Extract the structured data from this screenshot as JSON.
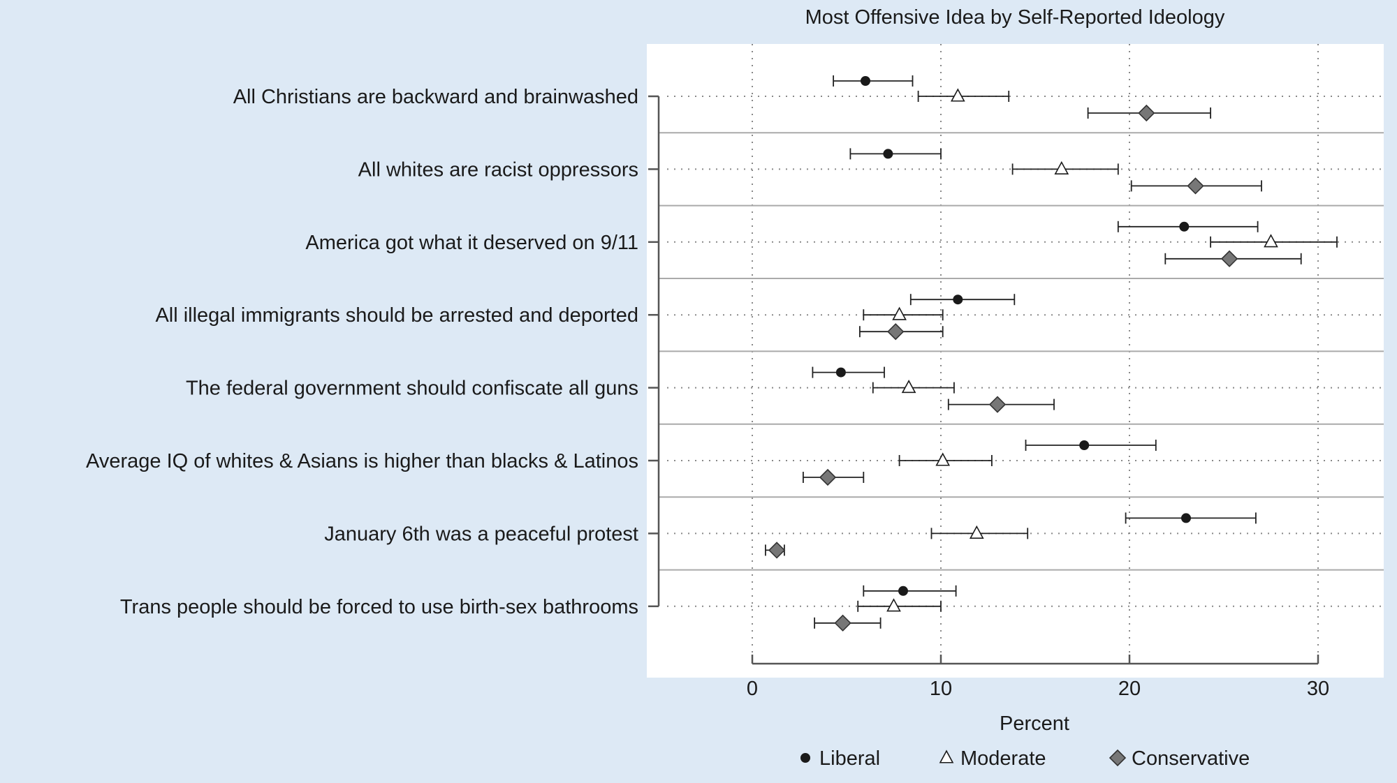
{
  "chart_data": {
    "type": "dot-errorbar",
    "title": "Most Offensive Idea by Self-Reported Ideology",
    "xlabel": "Percent",
    "ylabel": "",
    "xlim": [
      -5.6,
      33.4
    ],
    "xticks": [
      0,
      10,
      20,
      30
    ],
    "grid": true,
    "legend_position": "bottom",
    "categories": [
      "All Christians are backward and brainwashed",
      "All whites are racist oppressors",
      "America got what it deserved on 9/11",
      "All illegal immigrants should be arrested and deported",
      "The federal government should confiscate all guns",
      "Average IQ of whites & Asians is higher than blacks & Latinos",
      "January 6th was a peaceful protest",
      "Trans people should be forced to use birth-sex bathrooms"
    ],
    "series": [
      {
        "name": "Liberal",
        "marker": "circle",
        "color": "#1a1a1a",
        "values": [
          6.0,
          7.2,
          22.9,
          10.9,
          4.7,
          17.6,
          23.0,
          8.0
        ],
        "lower": [
          4.3,
          5.2,
          19.4,
          8.4,
          3.2,
          14.5,
          19.8,
          5.9
        ],
        "upper": [
          8.5,
          10.0,
          26.8,
          13.9,
          7.0,
          21.4,
          26.7,
          10.8
        ]
      },
      {
        "name": "Moderate",
        "marker": "triangle",
        "color": "#ffffff",
        "values": [
          10.9,
          16.4,
          27.5,
          7.8,
          8.3,
          10.1,
          11.9,
          7.5
        ],
        "lower": [
          8.8,
          13.8,
          24.3,
          5.9,
          6.4,
          7.8,
          9.5,
          5.6
        ],
        "upper": [
          13.6,
          19.4,
          31.0,
          10.1,
          10.7,
          12.7,
          14.6,
          10.0
        ]
      },
      {
        "name": "Conservative",
        "marker": "diamond",
        "color": "#777777",
        "values": [
          20.9,
          23.5,
          25.3,
          7.6,
          13.0,
          4.0,
          1.3,
          4.8
        ],
        "lower": [
          17.8,
          20.1,
          21.9,
          5.7,
          10.4,
          2.7,
          0.7,
          3.3
        ],
        "upper": [
          24.3,
          27.0,
          29.1,
          10.1,
          16.0,
          5.9,
          1.7,
          6.8
        ]
      }
    ]
  }
}
